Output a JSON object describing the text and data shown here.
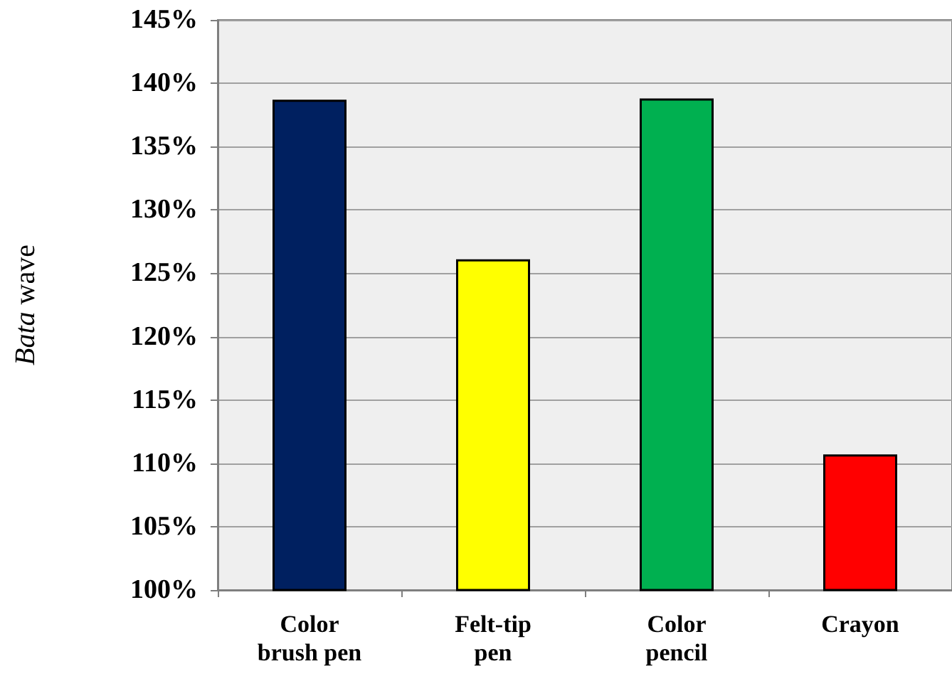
{
  "chart_data": {
    "type": "bar",
    "ylabel": "Bata wave",
    "categories": [
      "Color brush pen",
      "Felt-tip pen",
      "Color pencil",
      "Crayon"
    ],
    "values": [
      138.7,
      126.1,
      138.8,
      110.7
    ],
    "colors": [
      "#002060",
      "#ffff00",
      "#00b050",
      "#ff0000"
    ],
    "ylim": [
      100,
      145
    ],
    "yticks": [
      {
        "value": 100,
        "label": "100%"
      },
      {
        "value": 105,
        "label": "105%"
      },
      {
        "value": 110,
        "label": "110%"
      },
      {
        "value": 115,
        "label": "115%"
      },
      {
        "value": 120,
        "label": "120%"
      },
      {
        "value": 125,
        "label": "125%"
      },
      {
        "value": 130,
        "label": "130%"
      },
      {
        "value": 135,
        "label": "135%"
      },
      {
        "value": 140,
        "label": "140%"
      },
      {
        "value": 145,
        "label": "145%"
      }
    ],
    "grid": "y"
  }
}
